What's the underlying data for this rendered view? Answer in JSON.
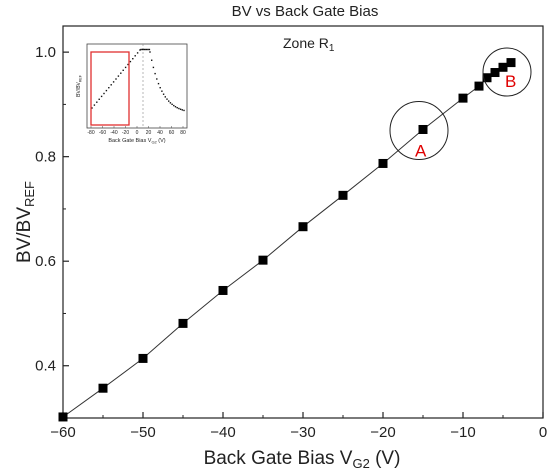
{
  "chart_data": {
    "type": "line",
    "title": "BV vs Back Gate Bias",
    "xlabel": "Back Gate Bias V",
    "xlabel_sub": "G2",
    "xlabel_unit": " (V)",
    "ylabel": "BV/BV",
    "ylabel_sub": "REF",
    "xlim": [
      -60,
      0
    ],
    "ylim": [
      0.3,
      1.05
    ],
    "x_ticks": [
      -60,
      -50,
      -40,
      -30,
      -20,
      -10,
      0
    ],
    "y_ticks": [
      0.4,
      0.6,
      0.8,
      1.0
    ],
    "x_tick_labels": [
      "−60",
      "−50",
      "−40",
      "−30",
      "−20",
      "−10",
      "0"
    ],
    "y_tick_labels": [
      "0.4",
      "0.6",
      "0.8",
      "1.0"
    ],
    "grid": false,
    "zone_label": "Zone R",
    "zone_sub": "1",
    "series": [
      {
        "marker": "square",
        "color": "#000000",
        "x": [
          -60,
          -55,
          -50,
          -45,
          -40,
          -35,
          -30,
          -25,
          -20,
          -15,
          -10,
          -8,
          -7,
          -6,
          -5,
          -4
        ],
        "y": [
          0.302,
          0.357,
          0.414,
          0.481,
          0.544,
          0.602,
          0.666,
          0.726,
          0.787,
          0.852,
          0.912,
          0.935,
          0.951,
          0.961,
          0.971,
          0.98
        ]
      }
    ],
    "annotations": [
      {
        "label": "A",
        "color": "#e00000",
        "cx": -15.5,
        "cy": 0.85
      },
      {
        "label": "B",
        "color": "#e00000",
        "cx": -4.5,
        "cy": 0.962
      }
    ],
    "inset": {
      "xlabel": "Back Gate Bias V",
      "xlabel_sub": "G2",
      "xlabel_unit": " (V)",
      "ylabel": "BV/BV",
      "ylabel_sub": "REF",
      "x_tick_labels": [
        "-80",
        "-60",
        "-40",
        "-20",
        "0",
        "20",
        "40",
        "60",
        "80"
      ],
      "highlight_color": "#e03030"
    }
  }
}
